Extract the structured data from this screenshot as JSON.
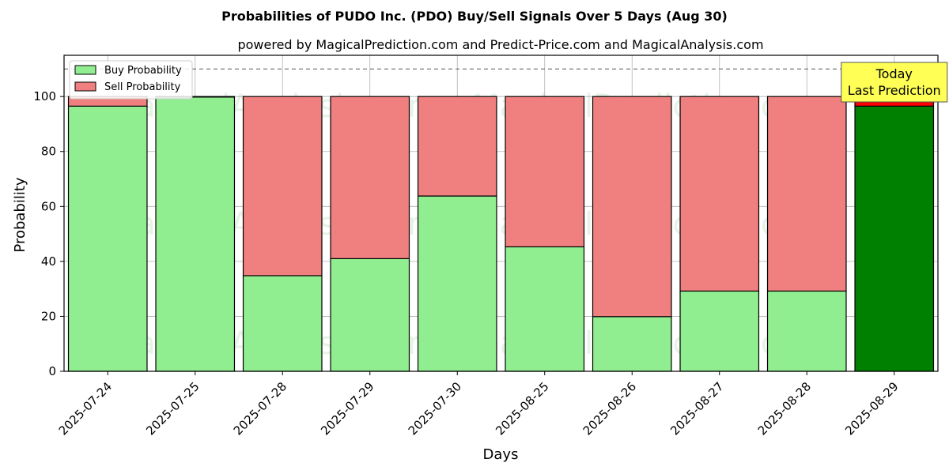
{
  "chart_data": {
    "type": "bar",
    "stacked": true,
    "title": "Probabilities of PUDO Inc. (PDO) Buy/Sell Signals Over 5 Days (Aug 30)",
    "subtitle": "powered by MagicalPrediction.com and Predict-Price.com and MagicalAnalysis.com",
    "xlabel": "Days",
    "ylabel": "Probability",
    "categories": [
      "2025-07-24",
      "2025-07-25",
      "2025-07-28",
      "2025-07-29",
      "2025-07-30",
      "2025-08-25",
      "2025-08-26",
      "2025-08-27",
      "2025-08-28",
      "2025-08-29"
    ],
    "series": [
      {
        "name": "Buy Probability",
        "values": [
          96.5,
          99.8,
          34.8,
          41.0,
          63.8,
          45.3,
          19.9,
          29.2,
          29.2,
          96.5
        ]
      },
      {
        "name": "Sell Probability",
        "values": [
          3.5,
          0.2,
          65.2,
          59.0,
          36.2,
          54.7,
          80.1,
          70.8,
          70.8,
          3.5
        ]
      }
    ],
    "ylim": [
      0,
      115
    ],
    "yticks": [
      0,
      20,
      40,
      60,
      80,
      100
    ],
    "grid": true,
    "legend_position": "top-left",
    "reference_line": 110,
    "annotation": {
      "lines": [
        "Today",
        "Last Prediction"
      ],
      "category": "2025-08-29"
    },
    "watermarks": [
      "MagicalAnalysis.com",
      "MagicalPrediction.com"
    ],
    "colors": {
      "buy": "#90ee90",
      "sell": "#f08080",
      "buy_highlight": "#008000",
      "sell_highlight": "#ff0000",
      "annotation_bg": "#ffff55",
      "grid": "#b0b0b0"
    }
  }
}
